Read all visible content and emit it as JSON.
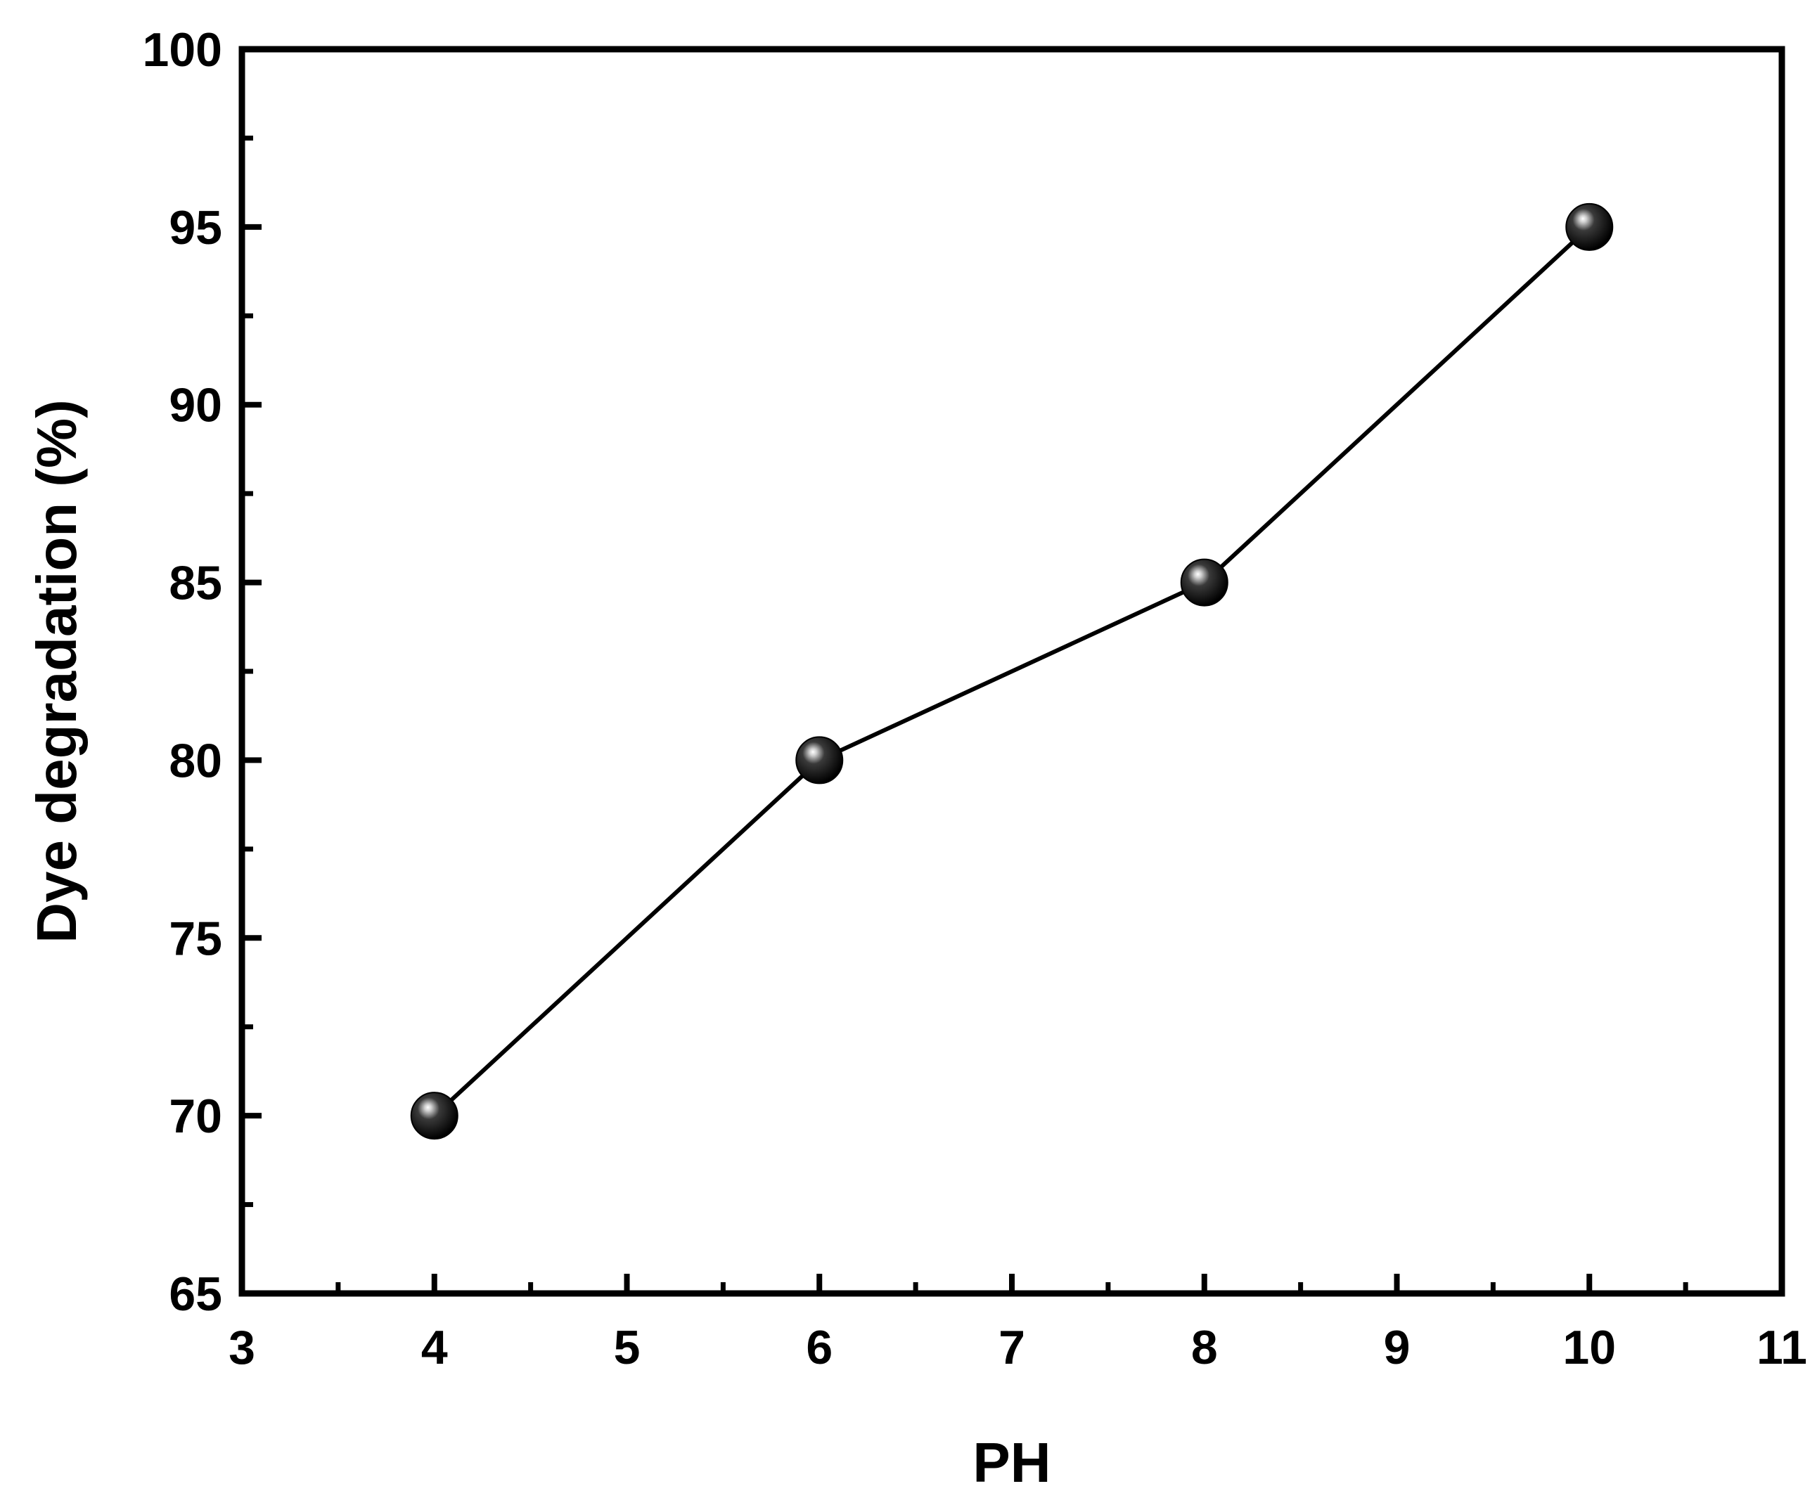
{
  "chart_data": {
    "type": "line",
    "title": "",
    "xlabel": "PH",
    "ylabel": "Dye degradation (%)",
    "xlim": [
      3,
      11
    ],
    "ylim": [
      65,
      100
    ],
    "x_ticks": [
      3,
      4,
      5,
      6,
      7,
      8,
      9,
      10,
      11
    ],
    "y_ticks": [
      65,
      70,
      75,
      80,
      85,
      90,
      95,
      100
    ],
    "grid": false,
    "legend": "none",
    "series": [
      {
        "x": [
          4,
          6,
          8,
          10
        ],
        "y": [
          70,
          80,
          85,
          95
        ],
        "color": "#000000",
        "marker": "sphere"
      }
    ]
  }
}
